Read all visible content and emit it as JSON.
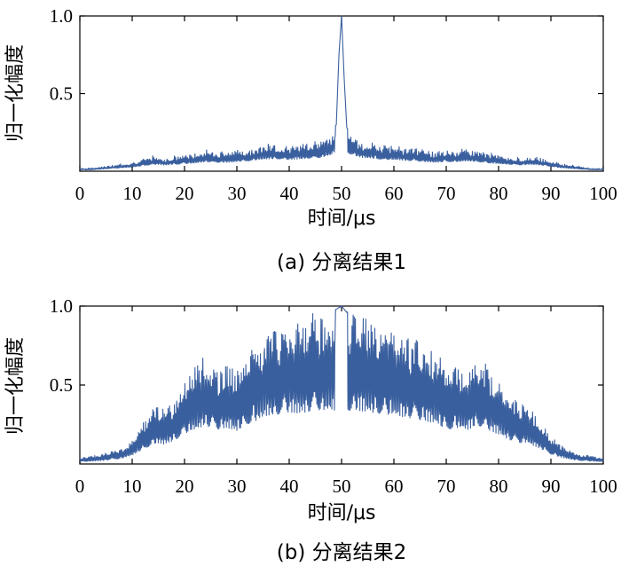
{
  "chart_data": [
    {
      "type": "line",
      "caption": "(a) 分离结果1",
      "xlabel": "时间/μs",
      "ylabel": "归一化幅度",
      "xlim": [
        0,
        100
      ],
      "ylim": [
        0,
        1.0
      ],
      "xticks": [
        "0",
        "10",
        "20",
        "30",
        "40",
        "50",
        "60",
        "70",
        "80",
        "90",
        "100"
      ],
      "yticks": [
        "0.5",
        "1.0"
      ],
      "color": "#3a5f9e",
      "series": [
        {
          "x": [
            0,
            2,
            4,
            6,
            8,
            10,
            12,
            14,
            15,
            16,
            18,
            20,
            22,
            24,
            26,
            28,
            30,
            32,
            34,
            36,
            38,
            40,
            42,
            44,
            46,
            48,
            49,
            49.5,
            50,
            50.5,
            51,
            52,
            54,
            56,
            58,
            60,
            62,
            64,
            66,
            68,
            70,
            72,
            74,
            76,
            78,
            80,
            82,
            84,
            86,
            88,
            90,
            92,
            94,
            96,
            98,
            100
          ],
          "y": [
            0.02,
            0.02,
            0.03,
            0.04,
            0.05,
            0.06,
            0.08,
            0.1,
            0.1,
            0.09,
            0.1,
            0.11,
            0.12,
            0.14,
            0.13,
            0.13,
            0.14,
            0.15,
            0.17,
            0.18,
            0.18,
            0.17,
            0.18,
            0.19,
            0.2,
            0.24,
            0.3,
            0.75,
            1.0,
            0.6,
            0.28,
            0.24,
            0.2,
            0.19,
            0.17,
            0.17,
            0.16,
            0.15,
            0.14,
            0.13,
            0.14,
            0.14,
            0.15,
            0.14,
            0.12,
            0.11,
            0.1,
            0.09,
            0.1,
            0.09,
            0.07,
            0.05,
            0.04,
            0.03,
            0.02,
            0.02
          ]
        }
      ]
    },
    {
      "type": "line",
      "caption": "(b) 分离结果2",
      "xlabel": "时间/μs",
      "ylabel": "归一化幅度",
      "xlim": [
        0,
        100
      ],
      "ylim": [
        0,
        1.0
      ],
      "xticks": [
        "0",
        "10",
        "20",
        "30",
        "40",
        "50",
        "60",
        "70",
        "80",
        "90",
        "100"
      ],
      "yticks": [
        "0.5",
        "1.0"
      ],
      "color": "#3a5f9e",
      "series": [
        {
          "x": [
            0,
            2,
            4,
            6,
            8,
            10,
            12,
            14,
            15,
            16,
            18,
            20,
            22,
            24,
            26,
            28,
            30,
            32,
            34,
            36,
            38,
            40,
            42,
            44,
            46,
            48,
            49,
            50,
            51,
            52,
            54,
            56,
            58,
            60,
            62,
            64,
            66,
            68,
            70,
            72,
            74,
            76,
            78,
            80,
            82,
            84,
            85,
            86,
            88,
            90,
            92,
            94,
            96,
            98,
            100
          ],
          "y": [
            0.04,
            0.05,
            0.06,
            0.08,
            0.1,
            0.16,
            0.26,
            0.36,
            0.38,
            0.36,
            0.42,
            0.55,
            0.62,
            0.7,
            0.62,
            0.66,
            0.6,
            0.72,
            0.8,
            0.88,
            0.9,
            0.94,
            0.92,
            0.95,
            0.98,
            0.96,
            0.98,
            1.0,
            0.96,
            0.98,
            0.96,
            0.93,
            0.9,
            0.88,
            0.85,
            0.82,
            0.78,
            0.74,
            0.62,
            0.66,
            0.62,
            0.7,
            0.62,
            0.54,
            0.44,
            0.38,
            0.4,
            0.36,
            0.28,
            0.18,
            0.12,
            0.08,
            0.06,
            0.05,
            0.04
          ]
        }
      ]
    }
  ]
}
